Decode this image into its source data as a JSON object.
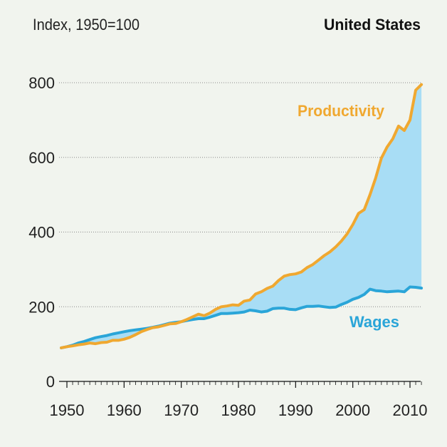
{
  "chart_data": {
    "type": "line",
    "title": "United States",
    "ylabel": "Index, 1950=100",
    "xlabel": "",
    "xlim": [
      1949,
      2012
    ],
    "ylim": [
      0,
      800
    ],
    "x_ticks": [
      1950,
      1960,
      1970,
      1980,
      1990,
      2000,
      2010
    ],
    "y_ticks": [
      0,
      200,
      400,
      600,
      800
    ],
    "grid": "horizontal dotted",
    "legend": "inline labels",
    "fill_between": true,
    "x": [
      1949,
      1950,
      1951,
      1952,
      1953,
      1954,
      1955,
      1956,
      1957,
      1958,
      1959,
      1960,
      1961,
      1962,
      1963,
      1964,
      1965,
      1966,
      1967,
      1968,
      1969,
      1970,
      1971,
      1972,
      1973,
      1974,
      1975,
      1976,
      1977,
      1978,
      1979,
      1980,
      1981,
      1982,
      1983,
      1984,
      1985,
      1986,
      1987,
      1988,
      1989,
      1990,
      1991,
      1992,
      1993,
      1994,
      1995,
      1996,
      1997,
      1998,
      1999,
      2000,
      2001,
      2002,
      2003,
      2004,
      2005,
      2006,
      2007,
      2008,
      2009,
      2010,
      2011,
      2012
    ],
    "series": [
      {
        "name": "Productivity",
        "color": "#f0a830",
        "values": [
          90,
          93,
          95,
          98,
          100,
          103,
          101,
          104,
          105,
          110,
          110,
          113,
          118,
          125,
          133,
          139,
          144,
          146,
          150,
          154,
          155,
          160,
          166,
          173,
          180,
          176,
          183,
          193,
          200,
          202,
          205,
          204,
          215,
          218,
          234,
          240,
          249,
          255,
          270,
          282,
          286,
          288,
          293,
          305,
          313,
          325,
          337,
          347,
          360,
          376,
          395,
          420,
          450,
          460,
          500,
          545,
          598,
          628,
          650,
          684,
          672,
          700,
          780,
          795
        ]
      },
      {
        "name": "Wages",
        "color": "#2aa5d8",
        "values": [
          90,
          93,
          97,
          103,
          107,
          112,
          117,
          120,
          123,
          127,
          130,
          133,
          136,
          138,
          140,
          142,
          145,
          148,
          152,
          156,
          158,
          160,
          163,
          166,
          168,
          168,
          172,
          177,
          182,
          182,
          183,
          184,
          186,
          191,
          189,
          186,
          188,
          195,
          196,
          196,
          193,
          192,
          197,
          201,
          201,
          202,
          200,
          198,
          199,
          206,
          212,
          220,
          225,
          233,
          247,
          243,
          242,
          240,
          241,
          242,
          240,
          253,
          252,
          250
        ]
      }
    ]
  }
}
